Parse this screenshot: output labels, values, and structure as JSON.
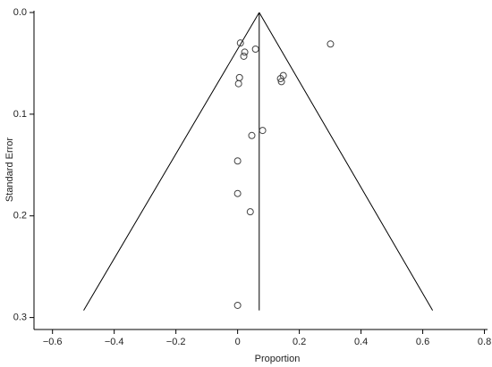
{
  "chart_data": {
    "type": "scatter",
    "x_label": "Proportion",
    "y_label": "Standard Error",
    "xlim": [
      -0.66,
      0.81
    ],
    "ylim": [
      0,
      0.31
    ],
    "y_inverted": true,
    "xticks": [
      {
        "value": -0.6,
        "label": "−0.6"
      },
      {
        "value": -0.4,
        "label": "−0.4"
      },
      {
        "value": -0.2,
        "label": "−0.2"
      },
      0,
      0.2,
      0.4,
      0.6,
      0.8
    ],
    "yticks": [
      {
        "value": 0,
        "label": "0.0"
      },
      0.1,
      0.2,
      0.3
    ],
    "x": [
      0.009,
      0.058,
      0.023,
      0.02,
      0.301,
      0.006,
      0.003,
      0.148,
      0.139,
      0.142,
      0.081,
      0.046,
      0,
      0,
      0.041,
      0
    ],
    "values": [
      0.03,
      0.036,
      0.039,
      0.043,
      0.031,
      0.064,
      0.07,
      0.062,
      0.065,
      0.068,
      0.116,
      0.121,
      0.146,
      0.178,
      0.196,
      0.288
    ],
    "pooled": 0.07,
    "funnel_bottom": 0.293,
    "funnel_x": [
      -0.499,
      0.632
    ],
    "color": "#444"
  }
}
